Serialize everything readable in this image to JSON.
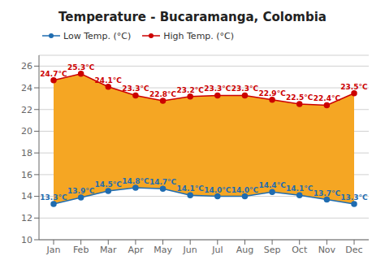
{
  "chart_data": {
    "type": "line",
    "title": "Temperature - Bucaramanga, Colombia",
    "categories": [
      "Jan",
      "Feb",
      "Mar",
      "Apr",
      "May",
      "Jun",
      "Jul",
      "Aug",
      "Sep",
      "Oct",
      "Nov",
      "Dec"
    ],
    "series": [
      {
        "name": "Low Temp. (°C)",
        "color": "#1f6cb0",
        "values": [
          13.3,
          13.9,
          14.5,
          14.8,
          14.7,
          14.1,
          14.0,
          14.0,
          14.4,
          14.1,
          13.7,
          13.3
        ],
        "value_labels": [
          "13.3°C",
          "13.9°C",
          "14.5°C",
          "14.8°C",
          "14.7°C",
          "14.1°C",
          "14.0°C",
          "14.0°C",
          "14.4°C",
          "14.1°C",
          "13.7°C",
          "13.3°C"
        ]
      },
      {
        "name": "High Temp. (°C)",
        "color": "#cc0000",
        "values": [
          24.7,
          25.3,
          24.1,
          23.3,
          22.8,
          23.2,
          23.3,
          23.3,
          22.9,
          22.5,
          22.4,
          23.5
        ],
        "value_labels": [
          "24.7°C",
          "25.3°C",
          "24.1°C",
          "23.3°C",
          "22.8°C",
          "23.2°C",
          "23.3°C",
          "23.3°C",
          "22.9°C",
          "22.5°C",
          "22.4°C",
          "23.5°C"
        ]
      }
    ],
    "ylim": [
      10,
      27
    ],
    "yticks": [
      10,
      12,
      14,
      16,
      18,
      20,
      22,
      24,
      26
    ],
    "grid": true,
    "legend": "upper left",
    "data_labels": true,
    "marker": "circle"
  }
}
